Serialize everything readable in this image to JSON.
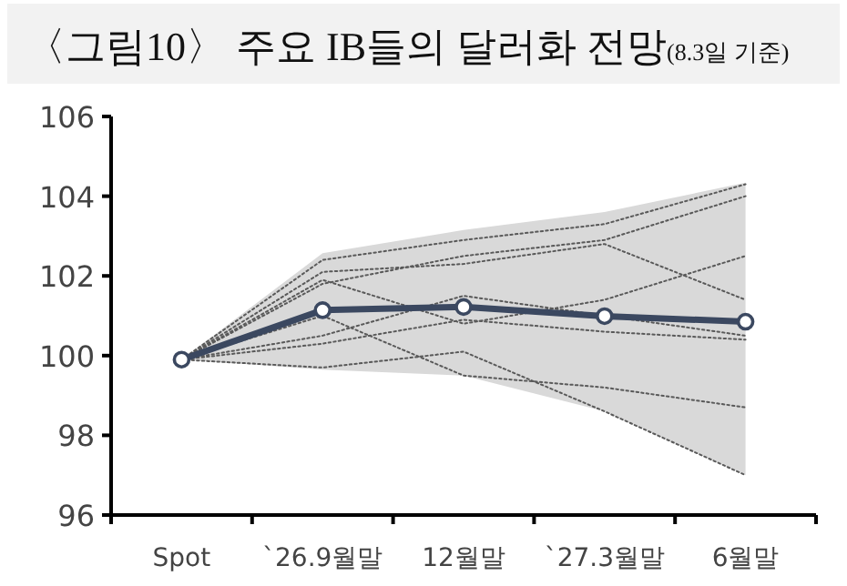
{
  "chart_data": {
    "type": "line",
    "title": "〈그림10〉 주요 IB들의 달러화 전망",
    "subtitle": "(8.3일 기준)",
    "categories": [
      "Spot",
      "`26.9월말",
      "12월말",
      "`27.3월말",
      "6월말"
    ],
    "ylim": [
      96,
      106
    ],
    "yticks": [
      96,
      98,
      100,
      102,
      104,
      106
    ],
    "grid": false,
    "series": [
      {
        "color": "#595959",
        "line_style": "dotted",
        "marker": "none",
        "values": [
          99.9,
          102.4,
          102.9,
          103.3,
          104.3
        ]
      },
      {
        "color": "#595959",
        "line_style": "dotted",
        "marker": "none",
        "values": [
          99.9,
          101.8,
          102.5,
          102.9,
          104.0
        ]
      },
      {
        "color": "#595959",
        "line_style": "dotted",
        "marker": "none",
        "values": [
          99.9,
          102.1,
          102.3,
          102.8,
          101.4
        ]
      },
      {
        "color": "#595959",
        "line_style": "dotted",
        "marker": "none",
        "values": [
          99.9,
          101.9,
          100.8,
          101.4,
          102.5
        ]
      },
      {
        "color": "#595959",
        "line_style": "dotted",
        "marker": "none",
        "values": [
          99.9,
          100.5,
          101.5,
          101.0,
          100.5
        ]
      },
      {
        "color": "#595959",
        "line_style": "dotted",
        "marker": "none",
        "values": [
          99.9,
          100.3,
          100.9,
          100.6,
          100.4
        ]
      },
      {
        "color": "#595959",
        "line_style": "dotted",
        "marker": "none",
        "values": [
          99.9,
          101.0,
          99.5,
          99.2,
          98.7
        ]
      },
      {
        "color": "#595959",
        "line_style": "dotted",
        "marker": "none",
        "values": [
          99.9,
          99.7,
          100.1,
          98.6,
          97.0
        ]
      },
      {
        "color": "#3b4860",
        "line_style": "solid",
        "marker": "circle",
        "values": [
          99.9,
          101.14,
          101.22,
          100.99,
          100.85
        ],
        "lower": [
          99.9,
          99.65,
          99.5,
          98.6,
          97.0
        ],
        "upper": [
          99.9,
          102.57,
          103.15,
          103.6,
          104.34
        ]
      }
    ]
  }
}
